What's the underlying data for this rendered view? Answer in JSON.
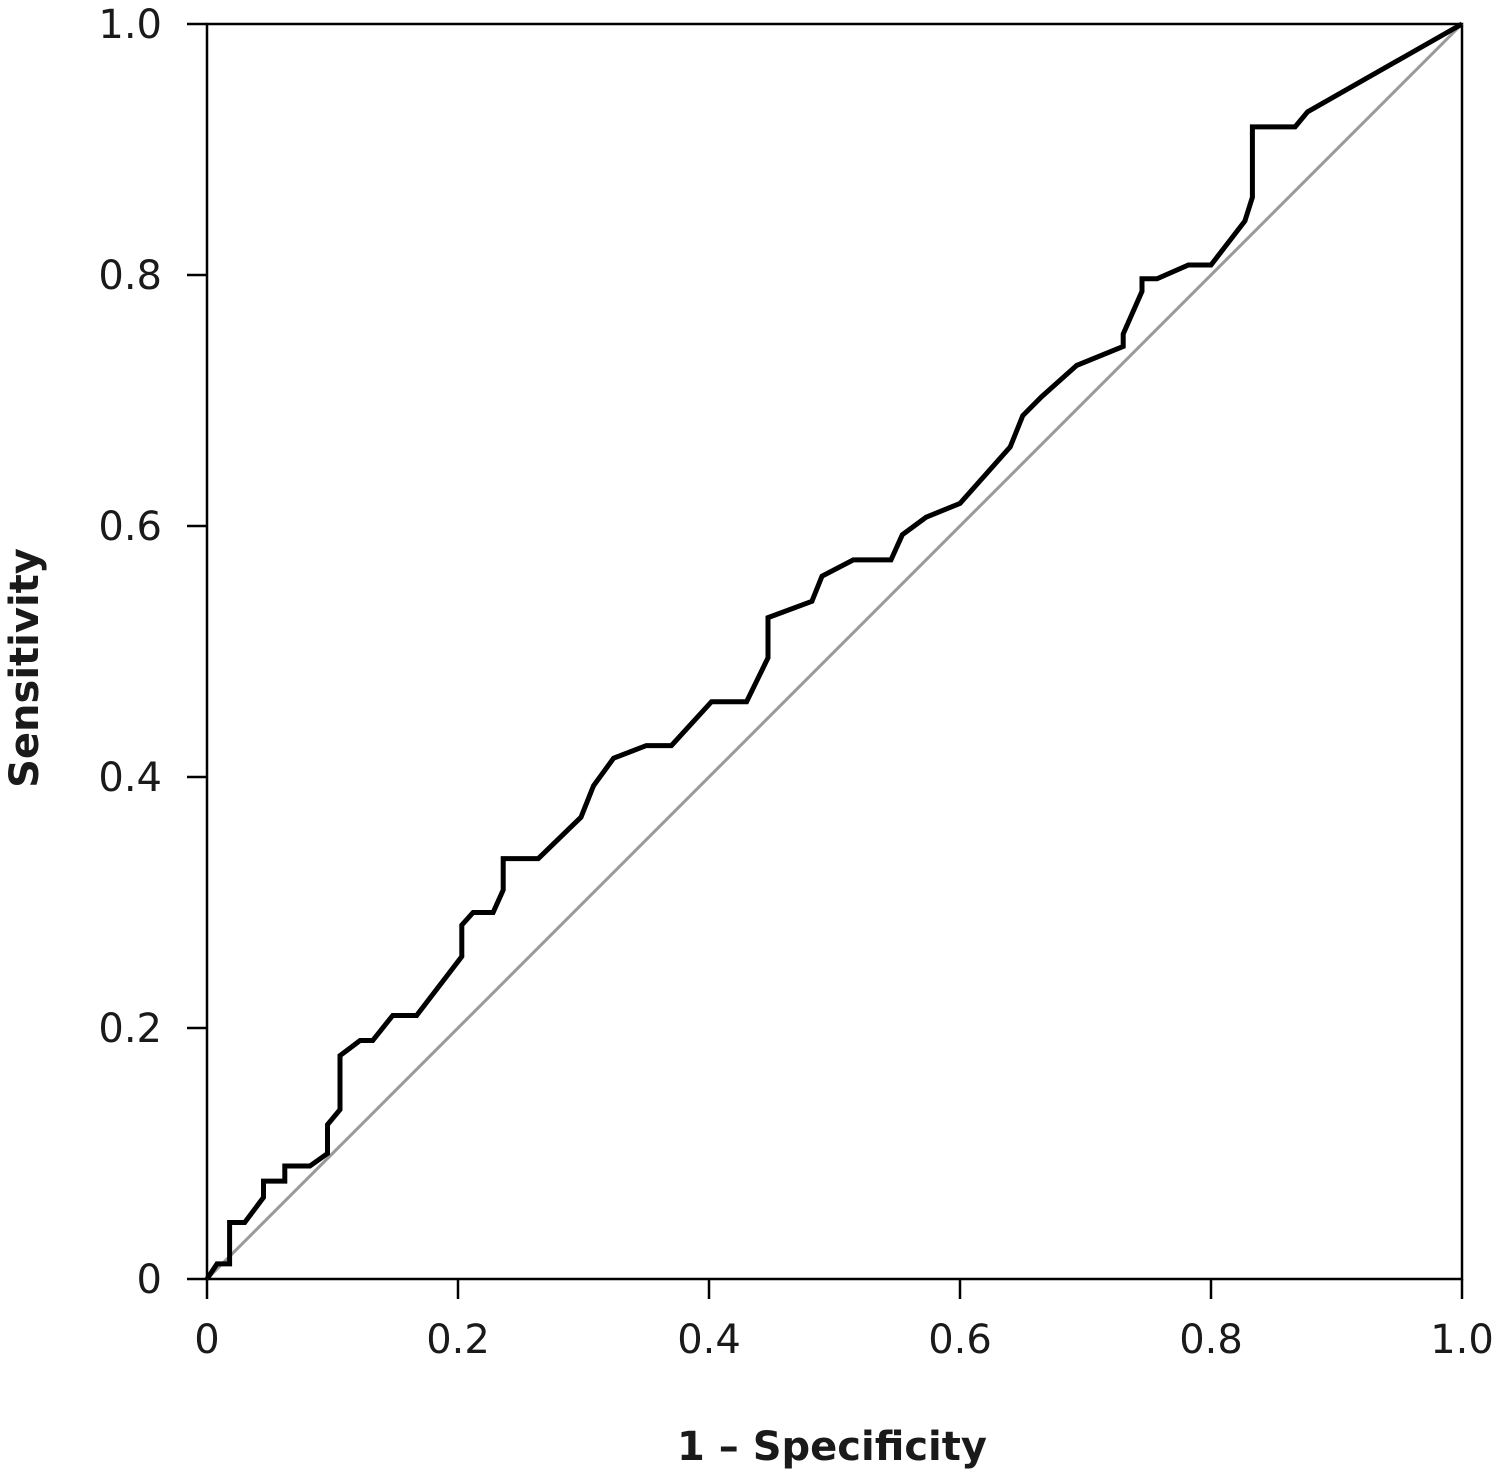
{
  "chart_data": {
    "type": "line",
    "title": "",
    "xlabel": "1 – Specificity",
    "ylabel": "Sensitivity",
    "xlim": [
      0,
      1.0
    ],
    "ylim": [
      0,
      1.0
    ],
    "x_ticks": [
      "0",
      "0.2",
      "0.4",
      "0.6",
      "0.8",
      "1.0"
    ],
    "y_ticks": [
      "0",
      "0.2",
      "0.4",
      "0.6",
      "0.8",
      "1.0"
    ],
    "grid": false,
    "legend": "none",
    "colors": {
      "roc": "#000000",
      "reference": "#999999"
    },
    "series": [
      {
        "x": [
          0,
          0.008,
          0.018,
          0.018,
          0.03,
          0.045,
          0.045,
          0.062,
          0.062,
          0.082,
          0.096,
          0.096,
          0.106,
          0.106,
          0.122,
          0.132,
          0.148,
          0.167,
          0.203,
          0.203,
          0.212,
          0.228,
          0.236,
          0.236,
          0.264,
          0.298,
          0.308,
          0.324,
          0.35,
          0.37,
          0.402,
          0.43,
          0.447,
          0.447,
          0.482,
          0.49,
          0.515,
          0.545,
          0.554,
          0.573,
          0.6,
          0.64,
          0.65,
          0.665,
          0.693,
          0.73,
          0.73,
          0.745,
          0.745,
          0.757,
          0.782,
          0.8,
          0.827,
          0.833,
          0.833,
          0.867,
          0.877,
          1.0
        ],
        "y": [
          0,
          0.012,
          0.012,
          0.045,
          0.045,
          0.065,
          0.078,
          0.078,
          0.09,
          0.09,
          0.1,
          0.123,
          0.135,
          0.178,
          0.19,
          0.19,
          0.21,
          0.21,
          0.257,
          0.282,
          0.292,
          0.292,
          0.31,
          0.335,
          0.335,
          0.368,
          0.393,
          0.415,
          0.425,
          0.425,
          0.46,
          0.46,
          0.495,
          0.527,
          0.54,
          0.56,
          0.573,
          0.573,
          0.593,
          0.607,
          0.618,
          0.663,
          0.688,
          0.703,
          0.728,
          0.743,
          0.753,
          0.787,
          0.797,
          0.797,
          0.808,
          0.808,
          0.843,
          0.862,
          0.918,
          0.918,
          0.93,
          1.0
        ]
      },
      {
        "x": [
          0,
          1.0
        ],
        "y": [
          0,
          1.0
        ]
      }
    ]
  }
}
